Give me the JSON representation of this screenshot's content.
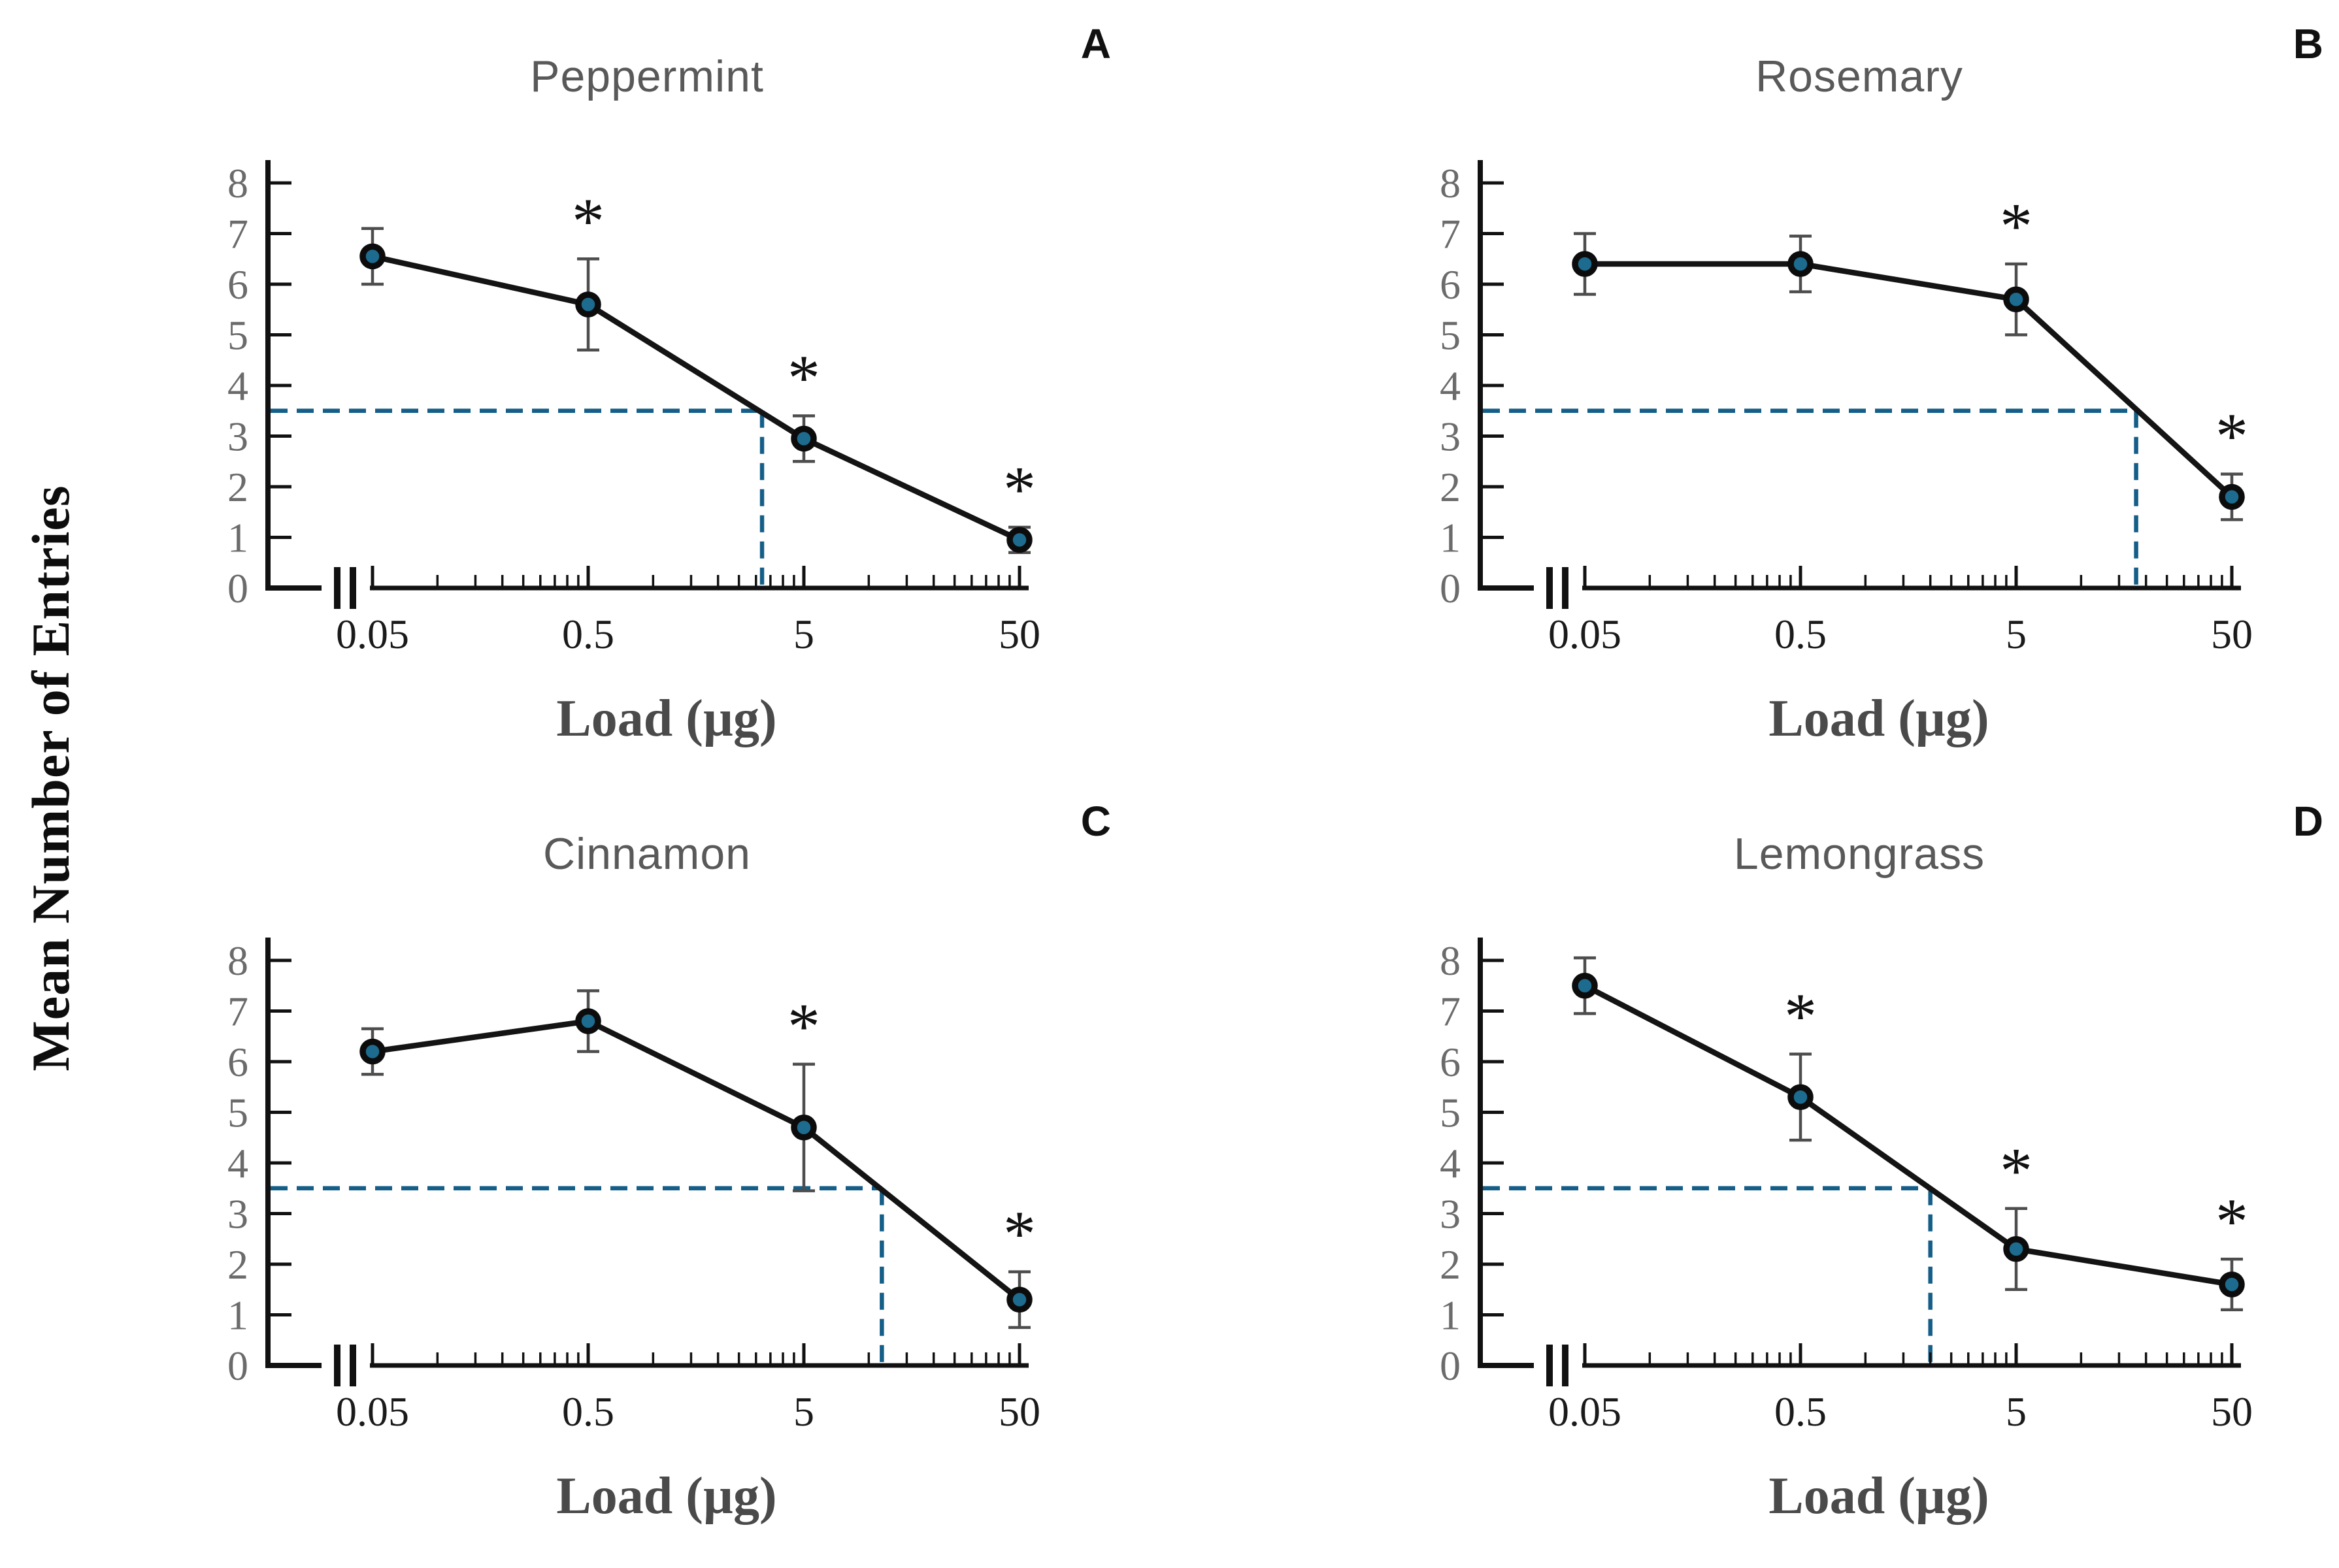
{
  "figure": {
    "y_axis_label": "Mean Number of Entries",
    "x_axis_label": "Load (µg)",
    "significance_marker": "*",
    "axis_break_marker": "||",
    "colors": {
      "marker_fill": "#1d6b8f",
      "marker_outline": "#0c0c0c",
      "data_line": "#141414",
      "error_bar": "#4d4d4d",
      "dashed_reference": "#155e88",
      "axis": "#111111",
      "y_tick_label": "#6b6b6b",
      "x_tick_label": "#1a1a1a",
      "panel_title": "#595959",
      "x_axis_title": "#4a4a4a"
    }
  },
  "chart_data": [
    {
      "type": "line",
      "panel": "A",
      "title": "Peppermint",
      "xlabel": "Load (µg)",
      "ylabel": "Mean Number of Entries",
      "x_scale": "log",
      "x": [
        0.05,
        0.5,
        5,
        50
      ],
      "x_tick_labels": [
        "0.05",
        "0.5",
        "5",
        "50"
      ],
      "ylim": [
        0,
        8
      ],
      "y_ticks": [
        0,
        1,
        2,
        3,
        4,
        5,
        6,
        7,
        8
      ],
      "grid": false,
      "legend": "none",
      "series": [
        {
          "name": "Peppermint",
          "values": [
            6.55,
            5.6,
            2.95,
            0.95
          ],
          "errors": [
            0.55,
            0.9,
            0.45,
            0.25
          ],
          "significant": [
            false,
            true,
            true,
            true
          ]
        }
      ],
      "dashed_reference": {
        "y": 3.5,
        "x": 3.2
      }
    },
    {
      "type": "line",
      "panel": "B",
      "title": "Rosemary",
      "xlabel": "Load (µg)",
      "ylabel": "Mean Number of Entries",
      "x_scale": "log",
      "x": [
        0.05,
        0.5,
        5,
        50
      ],
      "x_tick_labels": [
        "0.05",
        "0.5",
        "5",
        "50"
      ],
      "ylim": [
        0,
        8
      ],
      "y_ticks": [
        0,
        1,
        2,
        3,
        4,
        5,
        6,
        7,
        8
      ],
      "grid": false,
      "legend": "none",
      "series": [
        {
          "name": "Rosemary",
          "values": [
            6.4,
            6.4,
            5.7,
            1.8
          ],
          "errors": [
            0.6,
            0.55,
            0.7,
            0.45
          ],
          "significant": [
            false,
            false,
            true,
            true
          ]
        }
      ],
      "dashed_reference": {
        "y": 3.5,
        "x": 18
      }
    },
    {
      "type": "line",
      "panel": "C",
      "title": "Cinnamon",
      "xlabel": "Load (µg)",
      "ylabel": "Mean Number of Entries",
      "x_scale": "log",
      "x": [
        0.05,
        0.5,
        5,
        50
      ],
      "x_tick_labels": [
        "0.05",
        "0.5",
        "5",
        "50"
      ],
      "ylim": [
        0,
        8
      ],
      "y_ticks": [
        0,
        1,
        2,
        3,
        4,
        5,
        6,
        7,
        8
      ],
      "grid": false,
      "legend": "none",
      "series": [
        {
          "name": "Cinnamon",
          "values": [
            6.2,
            6.8,
            4.7,
            1.3
          ],
          "errors": [
            0.45,
            0.6,
            1.25,
            0.55
          ],
          "significant": [
            false,
            false,
            true,
            true
          ]
        }
      ],
      "dashed_reference": {
        "y": 3.5,
        "x": 11.5
      }
    },
    {
      "type": "line",
      "panel": "D",
      "title": "Lemongrass",
      "xlabel": "Load (µg)",
      "ylabel": "Mean Number of Entries",
      "x_scale": "log",
      "x": [
        0.05,
        0.5,
        5,
        50
      ],
      "x_tick_labels": [
        "0.05",
        "0.5",
        "5",
        "50"
      ],
      "ylim": [
        0,
        8
      ],
      "y_ticks": [
        0,
        1,
        2,
        3,
        4,
        5,
        6,
        7,
        8
      ],
      "grid": false,
      "legend": "none",
      "series": [
        {
          "name": "Lemongrass",
          "values": [
            7.5,
            5.3,
            2.3,
            1.6
          ],
          "errors": [
            0.55,
            0.85,
            0.8,
            0.5
          ],
          "significant": [
            false,
            true,
            true,
            true
          ]
        }
      ],
      "dashed_reference": {
        "y": 3.5,
        "x": 2.0
      }
    }
  ]
}
